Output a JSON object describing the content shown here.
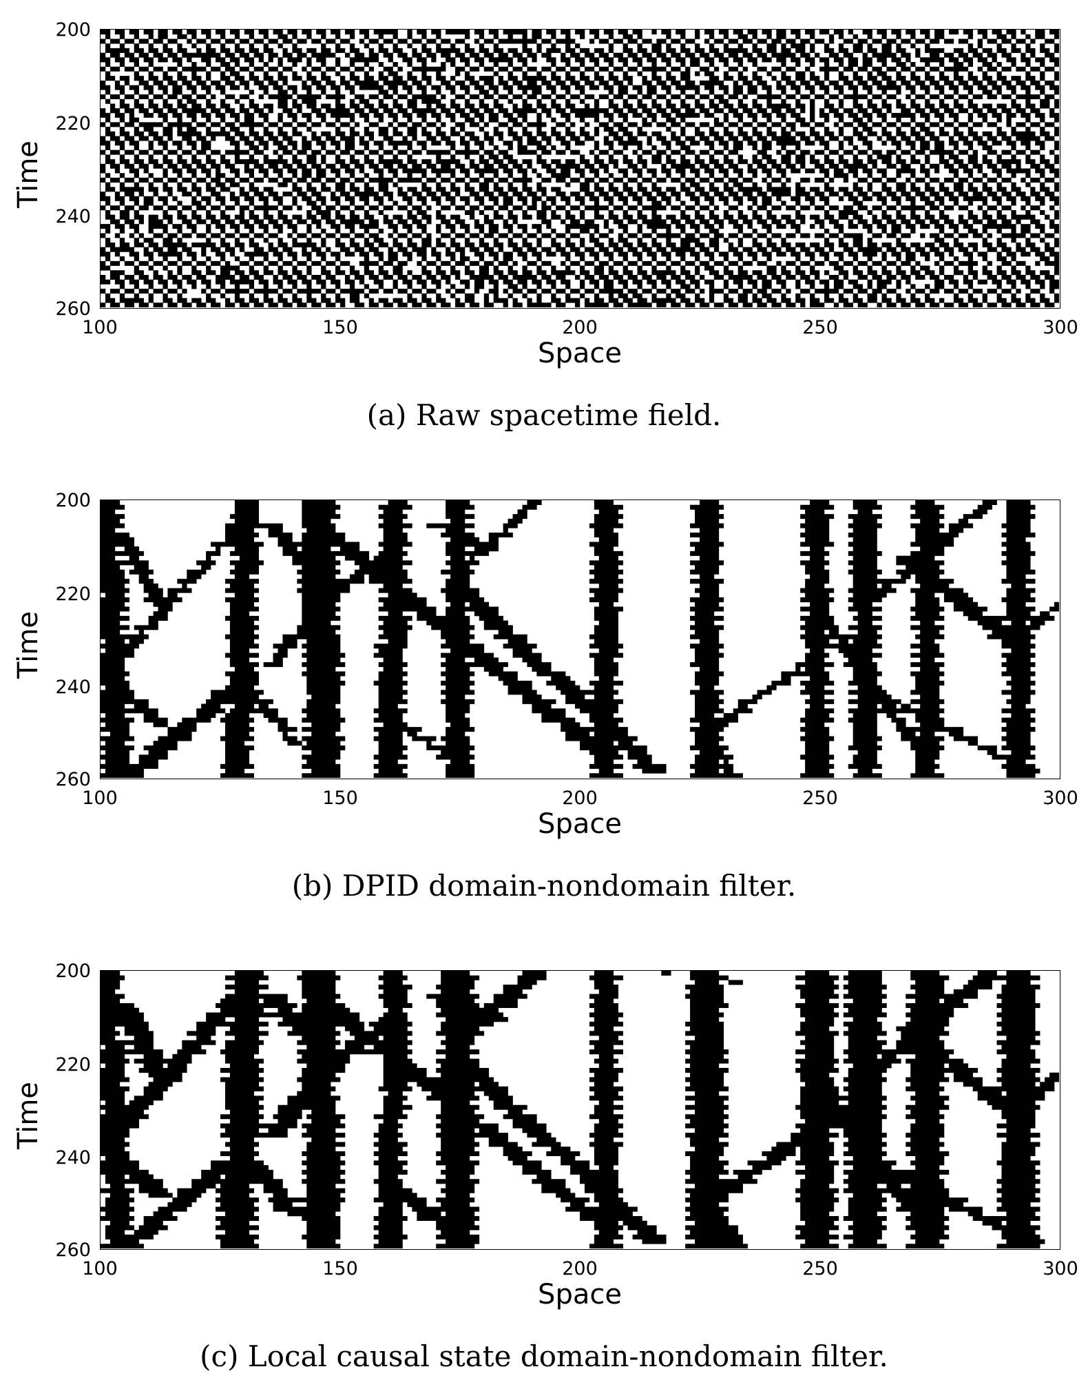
{
  "chart_data": [
    {
      "type": "heatmap",
      "title": "",
      "caption": "(a) Raw spacetime field.",
      "xlabel": "Space",
      "ylabel": "Time",
      "xlim": [
        100,
        300
      ],
      "ylim": [
        200,
        260
      ],
      "xticks": [
        "100",
        "150",
        "200",
        "250",
        "300"
      ],
      "yticks": [
        "200",
        "220",
        "240",
        "260"
      ],
      "pattern": "raw",
      "cell_values": "binary (black=1, white=0)",
      "particles": []
    },
    {
      "type": "heatmap",
      "title": "",
      "caption": "(b) DPID domain-nondomain filter.",
      "xlabel": "Space",
      "ylabel": "Time",
      "xlim": [
        100,
        300
      ],
      "ylim": [
        200,
        260
      ],
      "xticks": [
        "100",
        "150",
        "200",
        "250",
        "300"
      ],
      "yticks": [
        "200",
        "220",
        "240",
        "260"
      ],
      "pattern": "filtered",
      "cell_values": "binary (black=nondomain, white=domain)",
      "particles": [
        {
          "x0": 101,
          "t0": 200,
          "x1": 103,
          "t1": 260,
          "w": 4
        },
        {
          "x0": 130,
          "t0": 200,
          "x1": 128,
          "t1": 260,
          "w": 5
        },
        {
          "x0": 145,
          "t0": 200,
          "x1": 146,
          "t1": 260,
          "w": 6
        },
        {
          "x0": 161,
          "t0": 200,
          "x1": 160,
          "t1": 260,
          "w": 4
        },
        {
          "x0": 174,
          "t0": 200,
          "x1": 174,
          "t1": 260,
          "w": 5
        },
        {
          "x0": 205,
          "t0": 200,
          "x1": 205,
          "t1": 260,
          "w": 5
        },
        {
          "x0": 226,
          "t0": 200,
          "x1": 226,
          "t1": 260,
          "w": 5
        },
        {
          "x0": 249,
          "t0": 200,
          "x1": 249,
          "t1": 260,
          "w": 5
        },
        {
          "x0": 259,
          "t0": 200,
          "x1": 259,
          "t1": 260,
          "w": 5
        },
        {
          "x0": 272,
          "t0": 200,
          "x1": 272,
          "t1": 260,
          "w": 5
        },
        {
          "x0": 291,
          "t0": 200,
          "x1": 291,
          "t1": 260,
          "w": 5
        },
        {
          "x0": 104,
          "t0": 207,
          "x1": 112,
          "t1": 222,
          "w": 3
        },
        {
          "x0": 130,
          "t0": 203,
          "x1": 112,
          "t1": 224,
          "w": 3
        },
        {
          "x0": 112,
          "t0": 224,
          "x1": 102,
          "t1": 235,
          "w": 3
        },
        {
          "x0": 102,
          "t0": 238,
          "x1": 112,
          "t1": 248,
          "w": 3
        },
        {
          "x0": 130,
          "t0": 238,
          "x1": 104,
          "t1": 260,
          "w": 4
        },
        {
          "x0": 130,
          "t0": 240,
          "x1": 140,
          "t1": 252,
          "w": 3
        },
        {
          "x0": 145,
          "t0": 205,
          "x1": 205,
          "t1": 255,
          "w": 4
        },
        {
          "x0": 135,
          "t0": 205,
          "x1": 148,
          "t1": 220,
          "w": 3
        },
        {
          "x0": 148,
          "t0": 220,
          "x1": 135,
          "t1": 235,
          "w": 3
        },
        {
          "x0": 160,
          "t0": 210,
          "x1": 148,
          "t1": 220,
          "w": 3
        },
        {
          "x0": 170,
          "t0": 205,
          "x1": 182,
          "t1": 210,
          "w": 3
        },
        {
          "x0": 174,
          "t0": 218,
          "x1": 215,
          "t1": 258,
          "w": 4
        },
        {
          "x0": 190,
          "t0": 200,
          "x1": 174,
          "t1": 215,
          "w": 3
        },
        {
          "x0": 160,
          "t0": 246,
          "x1": 176,
          "t1": 258,
          "w": 3
        },
        {
          "x0": 226,
          "t0": 250,
          "x1": 232,
          "t1": 260,
          "w": 3
        },
        {
          "x0": 249,
          "t0": 233,
          "x1": 226,
          "t1": 250,
          "w": 3
        },
        {
          "x0": 250,
          "t0": 225,
          "x1": 272,
          "t1": 255,
          "w": 3
        },
        {
          "x0": 285,
          "t0": 200,
          "x1": 262,
          "t1": 220,
          "w": 3
        },
        {
          "x0": 268,
          "t0": 212,
          "x1": 292,
          "t1": 232,
          "w": 4
        },
        {
          "x0": 300,
          "t0": 222,
          "x1": 292,
          "t1": 228,
          "w": 3
        },
        {
          "x0": 259,
          "t0": 240,
          "x1": 294,
          "t1": 258,
          "w": 3
        }
      ]
    },
    {
      "type": "heatmap",
      "title": "",
      "caption": "(c) Local causal state domain-nondomain filter.",
      "xlabel": "Space",
      "ylabel": "Time",
      "xlim": [
        100,
        300
      ],
      "ylim": [
        200,
        260
      ],
      "xticks": [
        "100",
        "150",
        "200",
        "250",
        "300"
      ],
      "yticks": [
        "200",
        "220",
        "240",
        "260"
      ],
      "pattern": "filtered",
      "cell_values": "binary (black=nondomain, white=domain)",
      "particles": [
        {
          "x0": 101,
          "t0": 200,
          "x1": 103,
          "t1": 260,
          "w": 4
        },
        {
          "x0": 130,
          "t0": 200,
          "x1": 128,
          "t1": 260,
          "w": 6
        },
        {
          "x0": 145,
          "t0": 200,
          "x1": 146,
          "t1": 260,
          "w": 7
        },
        {
          "x0": 161,
          "t0": 200,
          "x1": 160,
          "t1": 260,
          "w": 5
        },
        {
          "x0": 174,
          "t0": 200,
          "x1": 174,
          "t1": 260,
          "w": 6
        },
        {
          "x0": 205,
          "t0": 200,
          "x1": 205,
          "t1": 260,
          "w": 5
        },
        {
          "x0": 226,
          "t0": 200,
          "x1": 226,
          "t1": 260,
          "w": 6
        },
        {
          "x0": 249,
          "t0": 200,
          "x1": 249,
          "t1": 260,
          "w": 6
        },
        {
          "x0": 259,
          "t0": 200,
          "x1": 259,
          "t1": 260,
          "w": 6
        },
        {
          "x0": 272,
          "t0": 200,
          "x1": 272,
          "t1": 260,
          "w": 6
        },
        {
          "x0": 291,
          "t0": 200,
          "x1": 291,
          "t1": 260,
          "w": 6
        },
        {
          "x0": 104,
          "t0": 207,
          "x1": 112,
          "t1": 222,
          "w": 4
        },
        {
          "x0": 130,
          "t0": 203,
          "x1": 112,
          "t1": 224,
          "w": 4
        },
        {
          "x0": 112,
          "t0": 224,
          "x1": 102,
          "t1": 235,
          "w": 4
        },
        {
          "x0": 102,
          "t0": 238,
          "x1": 112,
          "t1": 248,
          "w": 4
        },
        {
          "x0": 130,
          "t0": 238,
          "x1": 104,
          "t1": 260,
          "w": 5
        },
        {
          "x0": 130,
          "t0": 240,
          "x1": 140,
          "t1": 252,
          "w": 4
        },
        {
          "x0": 145,
          "t0": 205,
          "x1": 205,
          "t1": 255,
          "w": 5
        },
        {
          "x0": 135,
          "t0": 205,
          "x1": 148,
          "t1": 220,
          "w": 4
        },
        {
          "x0": 148,
          "t0": 220,
          "x1": 135,
          "t1": 235,
          "w": 4
        },
        {
          "x0": 160,
          "t0": 210,
          "x1": 148,
          "t1": 220,
          "w": 4
        },
        {
          "x0": 170,
          "t0": 205,
          "x1": 182,
          "t1": 210,
          "w": 4
        },
        {
          "x0": 174,
          "t0": 218,
          "x1": 215,
          "t1": 258,
          "w": 5
        },
        {
          "x0": 190,
          "t0": 200,
          "x1": 174,
          "t1": 215,
          "w": 4
        },
        {
          "x0": 160,
          "t0": 246,
          "x1": 176,
          "t1": 258,
          "w": 4
        },
        {
          "x0": 226,
          "t0": 250,
          "x1": 232,
          "t1": 260,
          "w": 4
        },
        {
          "x0": 249,
          "t0": 233,
          "x1": 226,
          "t1": 250,
          "w": 4
        },
        {
          "x0": 250,
          "t0": 225,
          "x1": 272,
          "t1": 255,
          "w": 4
        },
        {
          "x0": 285,
          "t0": 200,
          "x1": 262,
          "t1": 220,
          "w": 4
        },
        {
          "x0": 268,
          "t0": 212,
          "x1": 292,
          "t1": 232,
          "w": 5
        },
        {
          "x0": 300,
          "t0": 222,
          "x1": 292,
          "t1": 228,
          "w": 4
        },
        {
          "x0": 259,
          "t0": 240,
          "x1": 294,
          "t1": 258,
          "w": 4
        },
        {
          "x0": 218,
          "t0": 200,
          "x1": 232,
          "t1": 202,
          "w": 3
        }
      ]
    }
  ]
}
